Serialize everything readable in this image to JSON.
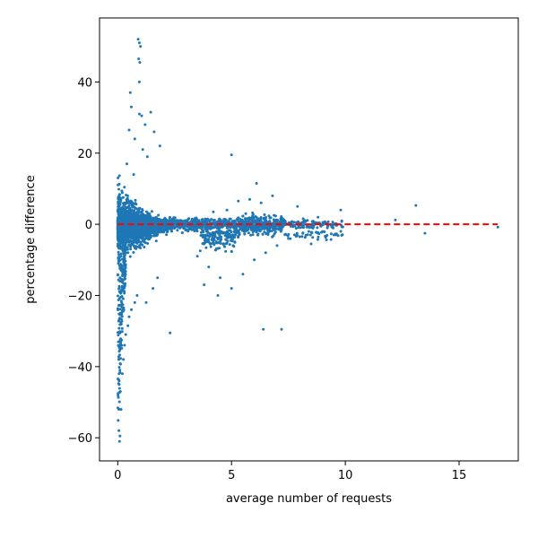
{
  "chart_data": {
    "type": "scatter",
    "title": "",
    "xlabel": "average number of requests",
    "ylabel": "percentage difference",
    "xlim": [
      -0.8,
      17.6
    ],
    "ylim": [
      -66.5,
      58.0
    ],
    "xticks": [
      0,
      5,
      10,
      15
    ],
    "yticks": [
      -60,
      -40,
      -20,
      0,
      20,
      40
    ],
    "grid": false,
    "legend": "none",
    "point_color": "#1f77b4",
    "reference_line": {
      "y": 0,
      "x_from": 0,
      "x_to": 16.7,
      "style": "dashed",
      "color": "#ff0000"
    },
    "series": [
      {
        "x": [
          0.9,
          0.95,
          1.0,
          0.92,
          0.97,
          0.95,
          0.55,
          0.6,
          0.95,
          1.05,
          1.2,
          1.45,
          1.6,
          1.85,
          0.5,
          0.75,
          1.1,
          1.3,
          0.4,
          0.7,
          5.0,
          6.1,
          12.2,
          13.1,
          13.5,
          16.7,
          6.4,
          7.2,
          2.3,
          0.08,
          0.1,
          0.05,
          0.15,
          0.12,
          0.06,
          0.2,
          0.25,
          0.3,
          0.35,
          0.45,
          0.5,
          0.6,
          0.75,
          0.85,
          1.25,
          1.55,
          1.75,
          3.5,
          4.0,
          4.5,
          5.0,
          5.5,
          6.0,
          6.5,
          7.0,
          7.5,
          8.0,
          8.5,
          9.0,
          9.5,
          4.2,
          4.8,
          5.3,
          5.8,
          6.3,
          6.8,
          3.8,
          4.4,
          9.8,
          8.8,
          7.9
        ],
        "y": [
          52.0,
          51.0,
          50.0,
          46.5,
          45.5,
          40.0,
          37.0,
          33.0,
          31.0,
          30.5,
          28.0,
          31.5,
          26.0,
          22.0,
          26.5,
          24.0,
          21.0,
          19.0,
          17.0,
          14.0,
          19.5,
          11.5,
          1.2,
          5.3,
          -2.5,
          -0.8,
          -29.5,
          -29.5,
          -30.5,
          -61.0,
          -59.5,
          -58.0,
          -52.0,
          -47.0,
          -45.0,
          -42.0,
          -38.0,
          -34.0,
          -31.0,
          -28.5,
          -26.0,
          -24.0,
          -22.0,
          -20.0,
          -22.0,
          -18.0,
          -15.0,
          -9.0,
          -12.0,
          -15.0,
          -18.0,
          -14.0,
          -10.0,
          -8.0,
          -6.0,
          -4.0,
          -3.5,
          -5.5,
          -2.0,
          -3.0,
          3.5,
          4.0,
          6.5,
          7.0,
          6.0,
          8.0,
          -17.0,
          -20.0,
          4.0,
          2.0,
          5.0
        ]
      }
    ]
  }
}
